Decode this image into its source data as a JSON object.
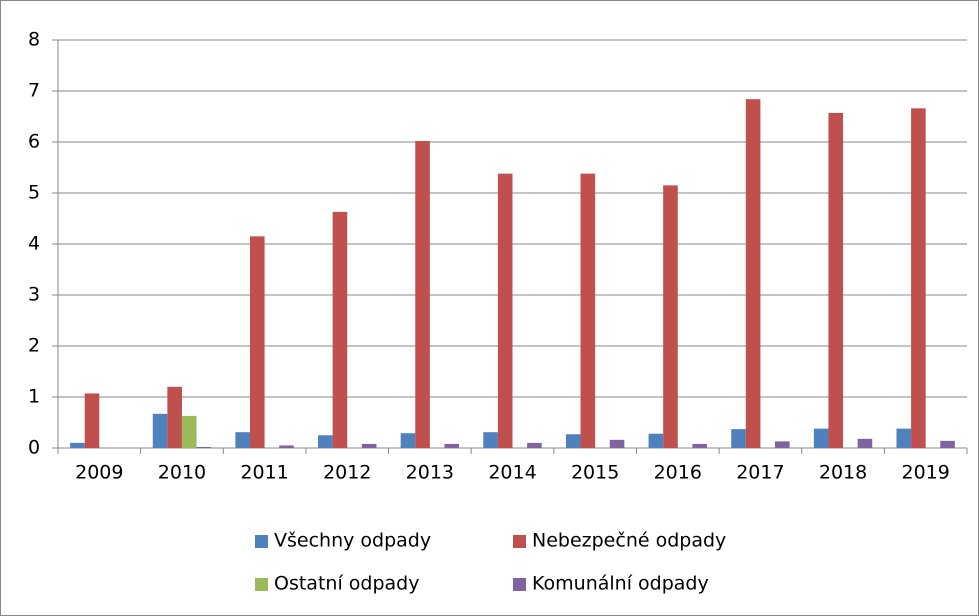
{
  "chart_data": {
    "type": "bar",
    "categories": [
      "2009",
      "2010",
      "2011",
      "2012",
      "2013",
      "2014",
      "2015",
      "2016",
      "2017",
      "2018",
      "2019"
    ],
    "series": [
      {
        "name": "Všechny odpady",
        "color": "#4f81bd",
        "values": [
          0.1,
          0.67,
          0.31,
          0.25,
          0.29,
          0.31,
          0.27,
          0.28,
          0.37,
          0.38,
          0.38
        ]
      },
      {
        "name": "Nebezpečné odpady",
        "color": "#c0504d",
        "values": [
          1.07,
          1.2,
          4.15,
          4.63,
          6.02,
          5.38,
          5.38,
          5.15,
          6.84,
          6.57,
          6.66
        ]
      },
      {
        "name": "Ostatní odpady",
        "color": "#9bbb59",
        "values": [
          null,
          0.63,
          null,
          null,
          null,
          null,
          null,
          null,
          null,
          null,
          null
        ]
      },
      {
        "name": "Komunální odpady",
        "color": "#8064a2",
        "values": [
          0,
          0.02,
          0.05,
          0.08,
          0.08,
          0.1,
          0.16,
          0.08,
          0.13,
          0.18,
          0.14
        ]
      }
    ],
    "ylim": [
      0,
      8
    ],
    "yticks": [
      0,
      1,
      2,
      3,
      4,
      5,
      6,
      7,
      8
    ],
    "grid": true,
    "legend": "bottom"
  }
}
